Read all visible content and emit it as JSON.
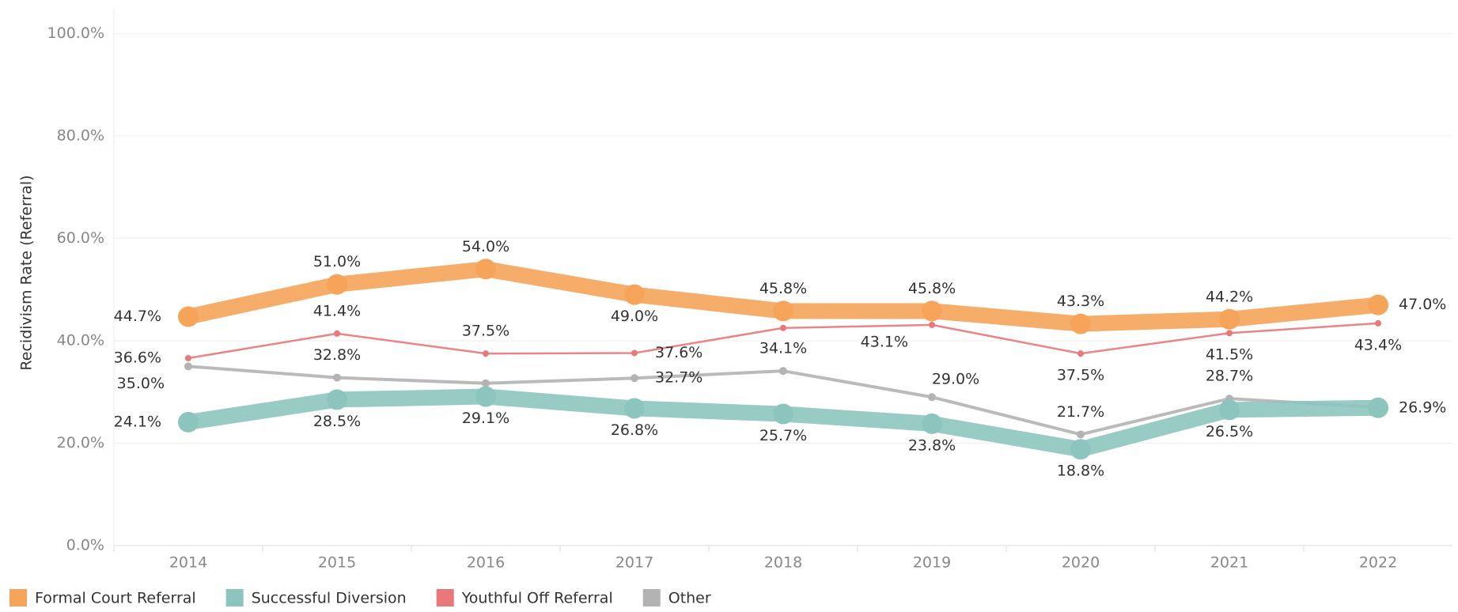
{
  "chart_data": {
    "type": "line",
    "y_label": "Recidivism Rate (Referral)",
    "categories": [
      "2014",
      "2015",
      "2016",
      "2017",
      "2018",
      "2019",
      "2020",
      "2021",
      "2022"
    ],
    "ylim": [
      0,
      105
    ],
    "yticks": [
      {
        "value": 0,
        "label": "0.0%"
      },
      {
        "value": 20,
        "label": "20.0%"
      },
      {
        "value": 40,
        "label": "40.0%"
      },
      {
        "value": 60,
        "label": "60.0%"
      },
      {
        "value": 80,
        "label": "80.0%"
      },
      {
        "value": 100,
        "label": "100.0%"
      }
    ],
    "grid": true,
    "legend": "bottom-left",
    "series": [
      {
        "name": "Formal Court Referral",
        "color": "#F5A45A",
        "values": [
          44.7,
          51.0,
          54.0,
          49.0,
          45.8,
          45.8,
          43.3,
          44.2,
          47.0
        ],
        "value_labels": [
          "44.7%",
          "51.0%",
          "54.0%",
          "49.0%",
          "45.8%",
          "45.8%",
          "43.3%",
          "44.2%",
          "47.0%"
        ]
      },
      {
        "name": "Successful Diversion",
        "color": "#8CC5BD",
        "values": [
          24.1,
          28.5,
          29.1,
          26.8,
          25.7,
          23.8,
          18.8,
          26.5,
          26.9
        ],
        "value_labels": [
          "24.1%",
          "28.5%",
          "29.1%",
          "26.8%",
          "25.7%",
          "23.8%",
          "18.8%",
          "26.5%",
          "26.9%"
        ]
      },
      {
        "name": "Youthful Off Referral",
        "color": "#E8787A",
        "values": [
          36.6,
          41.4,
          37.5,
          37.6,
          42.5,
          43.1,
          37.5,
          41.5,
          43.4
        ],
        "value_labels": [
          "36.6%",
          "41.4%",
          "37.5%",
          "37.6%",
          null,
          "43.1%",
          "37.5%",
          "41.5%",
          "43.4%"
        ]
      },
      {
        "name": "Other",
        "color": "#B3B3B3",
        "values": [
          35.0,
          32.8,
          31.7,
          32.7,
          34.1,
          29.0,
          21.7,
          28.7,
          27.0
        ],
        "value_labels": [
          "35.0%",
          "32.8%",
          null,
          "32.7%",
          "34.1%",
          "29.0%",
          "21.7%",
          "28.7%",
          null
        ]
      }
    ]
  }
}
